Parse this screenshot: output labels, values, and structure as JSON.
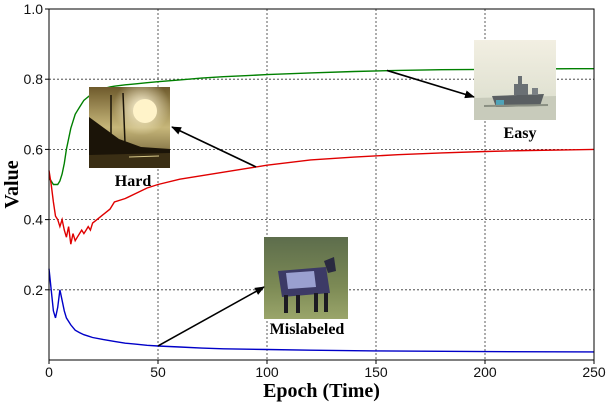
{
  "chart_data": {
    "type": "line",
    "xlabel": "Epoch (Time)",
    "ylabel": "Value",
    "xlim": [
      0,
      250
    ],
    "ylim": [
      0,
      1.0
    ],
    "x_ticks": [
      0,
      50,
      100,
      150,
      200,
      250
    ],
    "y_ticks": [
      0.2,
      0.4,
      0.6,
      0.8,
      1.0
    ],
    "grid": true,
    "series": [
      {
        "color": "#008000",
        "points": [
          [
            0,
            0.52
          ],
          [
            1,
            0.51
          ],
          [
            2,
            0.5
          ],
          [
            3,
            0.5
          ],
          [
            4,
            0.5
          ],
          [
            5,
            0.51
          ],
          [
            6,
            0.53
          ],
          [
            7,
            0.56
          ],
          [
            8,
            0.6
          ],
          [
            9,
            0.63
          ],
          [
            10,
            0.66
          ],
          [
            11,
            0.68
          ],
          [
            12,
            0.7
          ],
          [
            13,
            0.71
          ],
          [
            14,
            0.72
          ],
          [
            15,
            0.73
          ],
          [
            16,
            0.74
          ],
          [
            17,
            0.745
          ],
          [
            18,
            0.75
          ],
          [
            19,
            0.755
          ],
          [
            20,
            0.76
          ],
          [
            22,
            0.765
          ],
          [
            24,
            0.77
          ],
          [
            26,
            0.775
          ],
          [
            28,
            0.778
          ],
          [
            30,
            0.78
          ],
          [
            35,
            0.784
          ],
          [
            40,
            0.787
          ],
          [
            45,
            0.79
          ],
          [
            50,
            0.793
          ],
          [
            60,
            0.798
          ],
          [
            70,
            0.803
          ],
          [
            80,
            0.807
          ],
          [
            90,
            0.81
          ],
          [
            100,
            0.813
          ],
          [
            120,
            0.818
          ],
          [
            140,
            0.822
          ],
          [
            160,
            0.825
          ],
          [
            180,
            0.827
          ],
          [
            200,
            0.828
          ],
          [
            220,
            0.829
          ],
          [
            240,
            0.83
          ],
          [
            250,
            0.83
          ]
        ]
      },
      {
        "color": "#e00000",
        "points": [
          [
            0,
            0.54
          ],
          [
            1,
            0.5
          ],
          [
            2,
            0.45
          ],
          [
            3,
            0.41
          ],
          [
            4,
            0.4
          ],
          [
            5,
            0.38
          ],
          [
            6,
            0.4
          ],
          [
            7,
            0.37
          ],
          [
            8,
            0.35
          ],
          [
            9,
            0.38
          ],
          [
            10,
            0.33
          ],
          [
            11,
            0.36
          ],
          [
            12,
            0.34
          ],
          [
            13,
            0.35
          ],
          [
            14,
            0.36
          ],
          [
            15,
            0.37
          ],
          [
            16,
            0.36
          ],
          [
            17,
            0.37
          ],
          [
            18,
            0.38
          ],
          [
            19,
            0.37
          ],
          [
            20,
            0.39
          ],
          [
            22,
            0.4
          ],
          [
            24,
            0.41
          ],
          [
            26,
            0.42
          ],
          [
            28,
            0.43
          ],
          [
            30,
            0.45
          ],
          [
            35,
            0.46
          ],
          [
            40,
            0.475
          ],
          [
            45,
            0.49
          ],
          [
            50,
            0.5
          ],
          [
            60,
            0.515
          ],
          [
            70,
            0.525
          ],
          [
            80,
            0.535
          ],
          [
            90,
            0.545
          ],
          [
            100,
            0.555
          ],
          [
            120,
            0.57
          ],
          [
            140,
            0.578
          ],
          [
            160,
            0.585
          ],
          [
            180,
            0.59
          ],
          [
            200,
            0.594
          ],
          [
            220,
            0.597
          ],
          [
            240,
            0.599
          ],
          [
            250,
            0.6
          ]
        ]
      },
      {
        "color": "#0000c8",
        "points": [
          [
            0,
            0.26
          ],
          [
            1,
            0.2
          ],
          [
            2,
            0.14
          ],
          [
            3,
            0.12
          ],
          [
            4,
            0.15
          ],
          [
            5,
            0.2
          ],
          [
            6,
            0.17
          ],
          [
            7,
            0.14
          ],
          [
            8,
            0.12
          ],
          [
            10,
            0.1
          ],
          [
            12,
            0.085
          ],
          [
            14,
            0.078
          ],
          [
            16,
            0.072
          ],
          [
            18,
            0.068
          ],
          [
            20,
            0.064
          ],
          [
            25,
            0.058
          ],
          [
            30,
            0.053
          ],
          [
            35,
            0.048
          ],
          [
            40,
            0.045
          ],
          [
            45,
            0.042
          ],
          [
            50,
            0.04
          ],
          [
            60,
            0.037
          ],
          [
            70,
            0.034
          ],
          [
            80,
            0.032
          ],
          [
            100,
            0.03
          ],
          [
            120,
            0.028
          ],
          [
            150,
            0.026
          ],
          [
            200,
            0.024
          ],
          [
            250,
            0.023
          ]
        ]
      }
    ],
    "annotations": [
      {
        "label": "Hard",
        "x": 95,
        "y": 0.55
      },
      {
        "label": "Easy",
        "x": 155,
        "y": 0.825
      },
      {
        "label": "Mislabeled",
        "x": 50,
        "y": 0.04
      }
    ]
  }
}
